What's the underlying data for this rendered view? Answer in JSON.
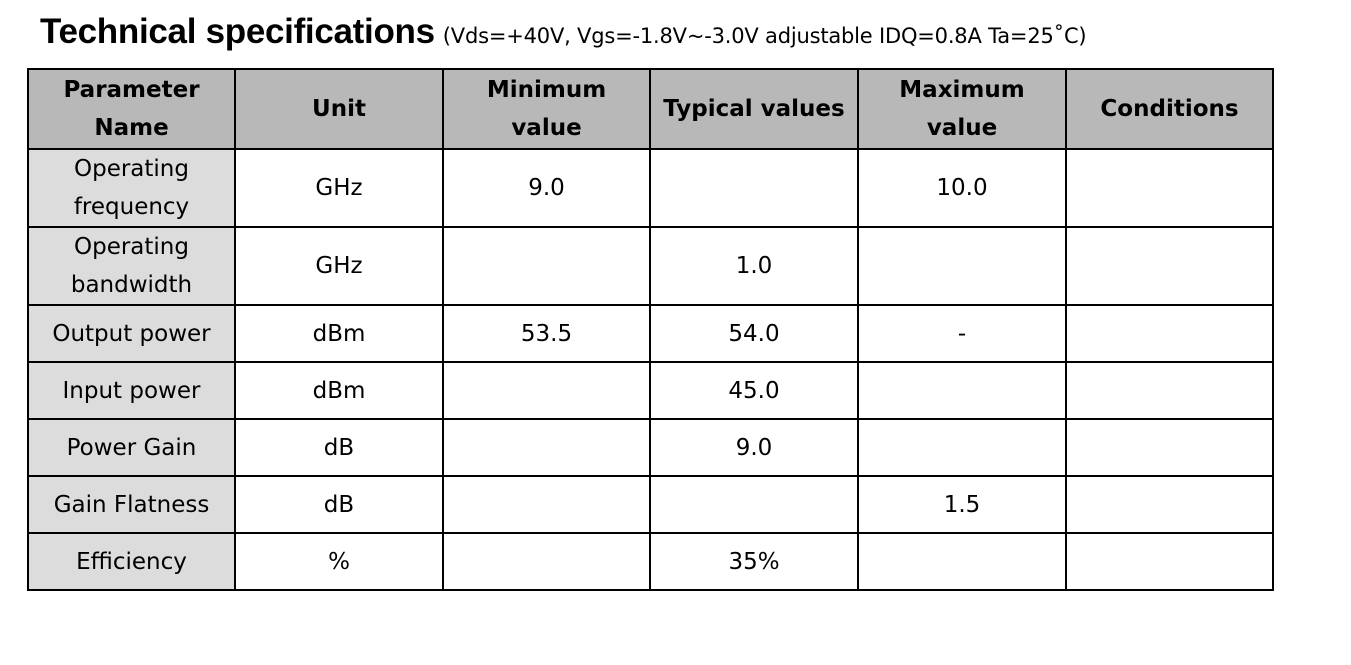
{
  "heading": {
    "title": "Technical specifications",
    "subtitle": "(Vds=+40V, Vgs=-1.8V~-3.0V adjustable IDQ=0.8A Ta=25˚C)"
  },
  "table": {
    "headers": [
      "Parameter Name",
      "Unit",
      "Minimum value",
      "Typical values",
      "Maximum value",
      "Conditions"
    ],
    "rows": [
      {
        "param": "Operating frequency",
        "unit": "GHz",
        "min": "9.0",
        "typ": "",
        "max": "10.0",
        "cond": ""
      },
      {
        "param": "Operating bandwidth",
        "unit": "GHz",
        "min": "",
        "typ": "1.0",
        "max": "",
        "cond": ""
      },
      {
        "param": "Output power",
        "unit": "dBm",
        "min": "53.5",
        "typ": "54.0",
        "max": "-",
        "cond": ""
      },
      {
        "param": "Input power",
        "unit": "dBm",
        "min": "",
        "typ": "45.0",
        "max": "",
        "cond": ""
      },
      {
        "param": "Power Gain",
        "unit": "dB",
        "min": "",
        "typ": "9.0",
        "max": "",
        "cond": ""
      },
      {
        "param": "Gain Flatness",
        "unit": "dB",
        "min": "",
        "typ": "",
        "max": "1.5",
        "cond": ""
      },
      {
        "param": "Efficiency",
        "unit": "%",
        "min": "",
        "typ": "35%",
        "max": "",
        "cond": ""
      }
    ]
  }
}
